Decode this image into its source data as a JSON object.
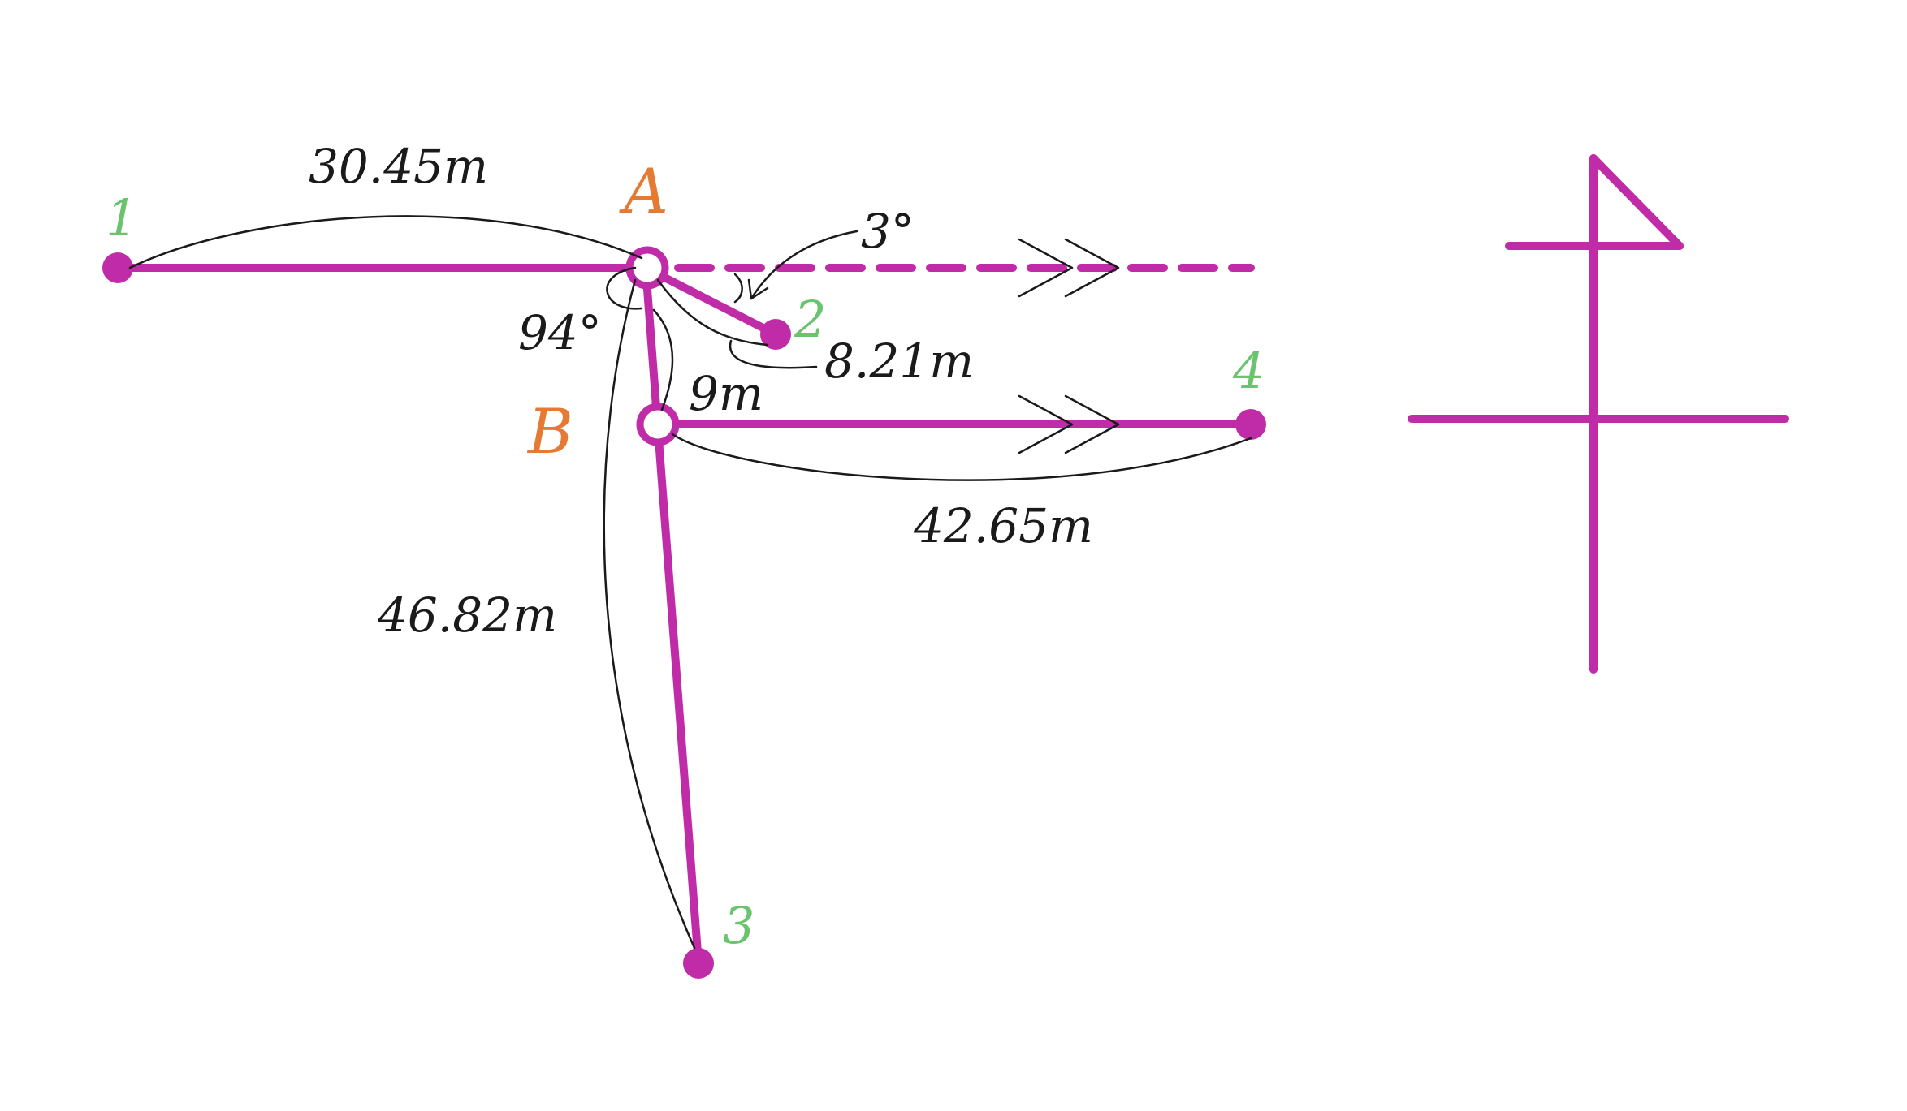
{
  "colors": {
    "line": "#c02ca8",
    "point_label": "#6cc36f",
    "node_label": "#e57a35",
    "ink": "#1a1a1a"
  },
  "points": {
    "p1": "1",
    "p2": "2",
    "p3": "3",
    "p4": "4"
  },
  "nodes": {
    "a": "A",
    "b": "B"
  },
  "measurements": {
    "a_to_1": "30.45m",
    "a_to_2": "8.21m",
    "a_to_3": "46.82m",
    "b_to_4": "42.65m",
    "a_to_b": "9m",
    "angle_small": "3°",
    "angle_large": "94°"
  },
  "icons": {
    "side_symbol": "line-sketch-icon"
  }
}
